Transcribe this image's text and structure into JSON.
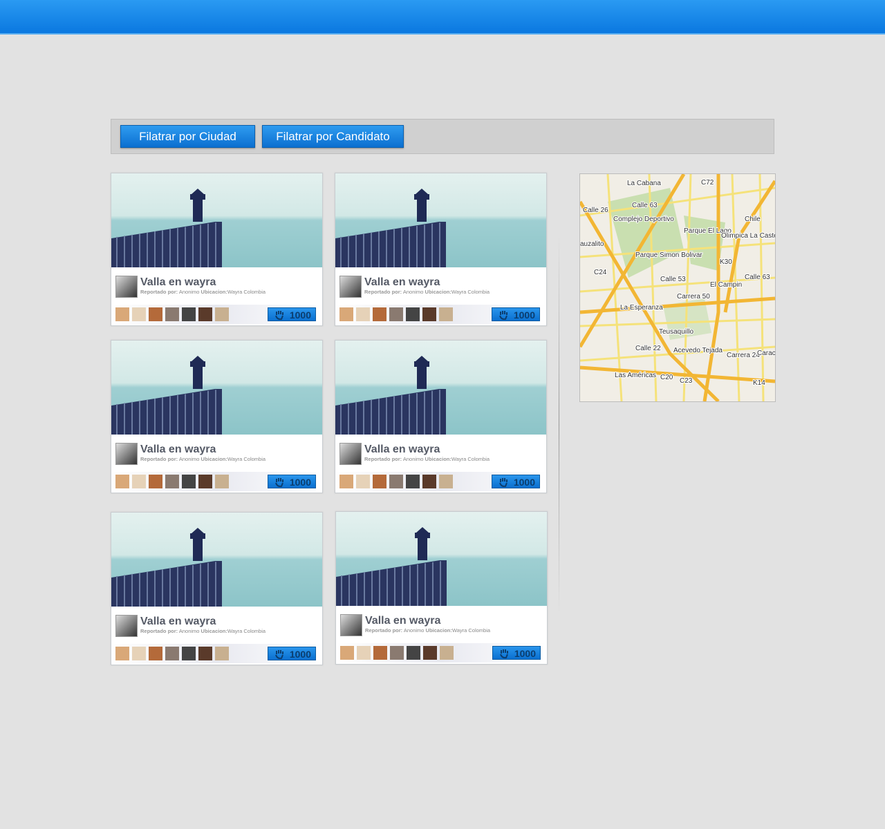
{
  "filters": {
    "buttons": [
      "Filatrar por Ciudad",
      "Filatrar por Candidato"
    ]
  },
  "cards": [
    {
      "title": "Valla en wayra",
      "reporter_label": "Reportado por:",
      "reporter": "Anonimo",
      "location_label": "Ubicacion:",
      "location": "Wayra Colombia",
      "votes": 1000
    },
    {
      "title": "Valla en wayra",
      "reporter_label": "Reportado por:",
      "reporter": "Anonimo",
      "location_label": "Ubicacion:",
      "location": "Wayra Colombia",
      "votes": 1000
    },
    {
      "title": "Valla en wayra",
      "reporter_label": "Reportado por:",
      "reporter": "Anonimo",
      "location_label": "Ubicacion:",
      "location": "Wayra Colombia",
      "votes": 1000
    },
    {
      "title": "Valla en wayra",
      "reporter_label": "Reportado por:",
      "reporter": "Anonimo",
      "location_label": "Ubicacion:",
      "location": "Wayra Colombia",
      "votes": 1000
    },
    {
      "title": "Valla en wayra",
      "reporter_label": "Reportado por:",
      "reporter": "Anonimo",
      "location_label": "Ubicacion:",
      "location": "Wayra Colombia",
      "votes": 1000
    },
    {
      "title": "Valla en wayra",
      "reporter_label": "Reportado por:",
      "reporter": "Anonimo",
      "location_label": "Ubicacion:",
      "location": "Wayra Colombia",
      "votes": 1000
    }
  ],
  "map": {
    "labels": [
      "La Cabana",
      "C72",
      "Calle 63",
      "Calle 26",
      "Complejo Deportivo",
      "Parque El Lago",
      "Chile",
      "Olimpica La Castellana",
      "auzalito",
      "Parque Simon Bolivar",
      "C24",
      "Calle 53",
      "Carrera 50",
      "El Campin",
      "K30",
      "Calle 63",
      "Teusaquillo",
      "La Esperanza",
      "Calle 22",
      "Acevedo Tejada",
      "Carrera 24",
      "Caracas",
      "K14",
      "Las Américas",
      "C20",
      "C23"
    ]
  }
}
